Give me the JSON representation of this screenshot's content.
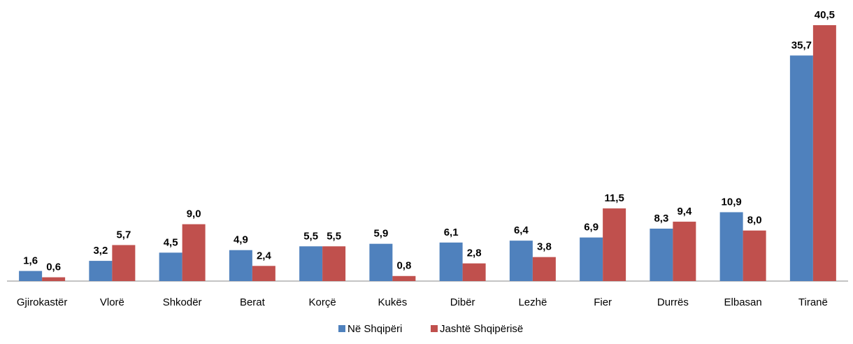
{
  "chart_data": {
    "type": "bar",
    "categories": [
      "Gjirokastër",
      "Vlorë",
      "Shkodër",
      "Berat",
      "Korçë",
      "Kukës",
      "Dibër",
      "Lezhë",
      "Fier",
      "Durrës",
      "Elbasan",
      "Tiranë"
    ],
    "series": [
      {
        "name": "Në Shqipëri",
        "color": "#4f81bd",
        "values": [
          1.6,
          3.2,
          4.5,
          4.9,
          5.5,
          5.9,
          6.1,
          6.4,
          6.9,
          8.3,
          10.9,
          35.7
        ],
        "value_labels": [
          "1,6",
          "3,2",
          "4,5",
          "4,9",
          "5,5",
          "5,9",
          "6,1",
          "6,4",
          "6,9",
          "8,3",
          "10,9",
          "35,7"
        ]
      },
      {
        "name": "Jashtë Shqipërisë",
        "color": "#c0504d",
        "values": [
          0.6,
          5.7,
          9.0,
          2.4,
          5.5,
          0.8,
          2.8,
          3.8,
          11.5,
          9.4,
          8.0,
          40.5
        ],
        "value_labels": [
          "0,6",
          "5,7",
          "9,0",
          "2,4",
          "5,5",
          "0,8",
          "2,8",
          "3,8",
          "11,5",
          "9,4",
          "8,0",
          "40,5"
        ]
      }
    ],
    "legend": "bottom"
  }
}
